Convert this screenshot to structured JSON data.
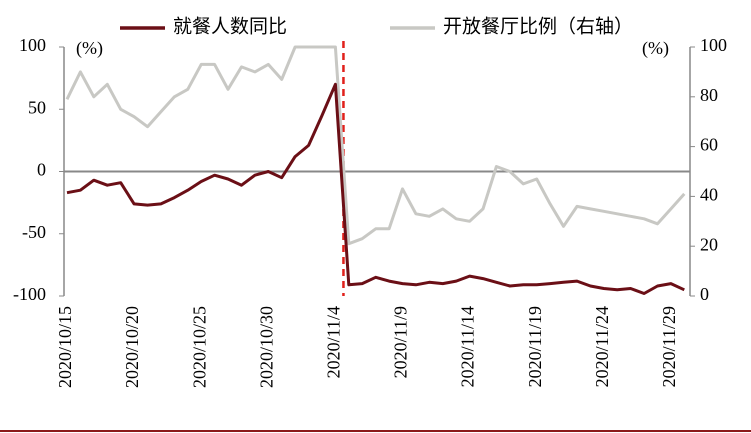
{
  "chart_data": {
    "type": "line",
    "categories": [
      "2020/10/15",
      null,
      null,
      null,
      null,
      "2020/10/20",
      null,
      null,
      null,
      null,
      "2020/10/25",
      null,
      null,
      null,
      null,
      "2020/10/30",
      null,
      null,
      null,
      null,
      "2020/11/4",
      null,
      null,
      null,
      null,
      "2020/11/9",
      null,
      null,
      null,
      null,
      "2020/11/14",
      null,
      null,
      null,
      null,
      "2020/11/19",
      null,
      null,
      null,
      null,
      "2020/11/24",
      null,
      null,
      null,
      null,
      "2020/11/29",
      null
    ],
    "series": [
      {
        "name": "就餐人数同比",
        "color": "#6b0f16",
        "axis": "y",
        "values": [
          -17,
          -15,
          -7,
          -11,
          -9,
          -26,
          -27,
          -26,
          -21,
          -15,
          -8,
          -3,
          -6,
          -11,
          -3,
          0,
          -5,
          12,
          21,
          45,
          70,
          -91,
          -90,
          -85,
          -88,
          -90,
          -91,
          -89,
          -90,
          -88,
          -84,
          -86,
          -89,
          -92,
          -91,
          -91,
          -90,
          -89,
          -88,
          -92,
          -94,
          -95,
          -94,
          -98,
          -92,
          -90,
          -95
        ]
      },
      {
        "name": "开放餐厅比例（右轴）",
        "color": "#c8c8c4",
        "axis": "y2",
        "values": [
          79,
          90,
          80,
          85,
          75,
          72,
          68,
          74,
          80,
          83,
          93,
          93,
          83,
          92,
          90,
          93,
          87,
          100,
          100,
          100,
          100,
          21,
          23,
          27,
          27,
          43,
          33,
          32,
          35,
          31,
          30,
          35,
          52,
          50,
          45,
          47,
          37,
          28,
          36,
          35,
          34,
          33,
          32,
          31,
          29,
          35,
          41
        ]
      }
    ],
    "y_label": "(%)",
    "y2_label": "(%)",
    "ylim": [
      -100,
      100
    ],
    "yticks": [
      100,
      50,
      0,
      -50,
      -100
    ],
    "y2lim": [
      0,
      100
    ],
    "y2ticks": [
      100,
      80,
      60,
      40,
      20,
      0
    ],
    "legend": "top"
  }
}
